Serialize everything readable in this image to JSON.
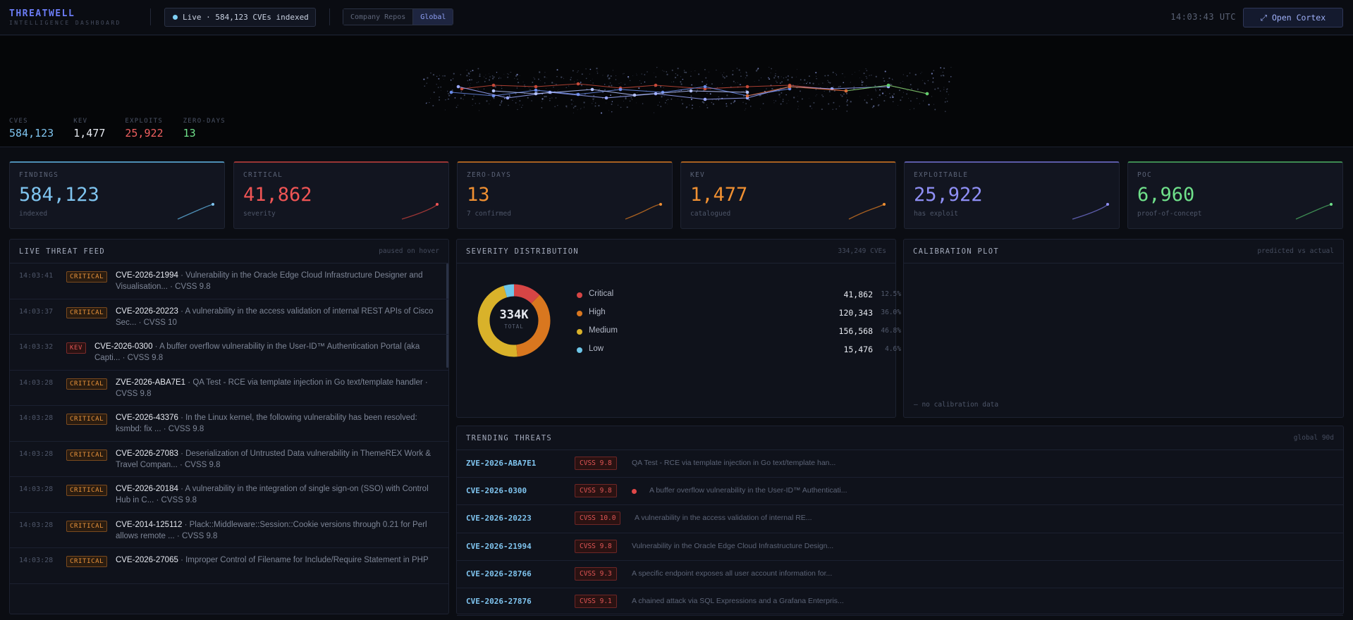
{
  "header": {
    "brand_name": "THREATWELL",
    "brand_sub": "INTELLIGENCE DASHBOARD",
    "live_text": "Live · 584,123 CVEs indexed",
    "scope_options": [
      "Company Repos",
      "Global"
    ],
    "scope_selected": "Global",
    "clock": "14:03:43 UTC",
    "cortex_label": "⤢ Open Cortex"
  },
  "hero_stats": [
    {
      "label": "CVES",
      "value": "584,123",
      "color": "#7fc4ef"
    },
    {
      "label": "KEV",
      "value": "1,477",
      "color": "#e6e9f0"
    },
    {
      "label": "EXPLOITS",
      "value": "25,922",
      "color": "#f06060"
    },
    {
      "label": "ZERO-DAYS",
      "value": "13",
      "color": "#6fe08a"
    }
  ],
  "cards": [
    {
      "label": "FINDINGS",
      "value": "584,123",
      "sub": "indexed",
      "color": "#7fc4ef",
      "border": "#4e8fb6"
    },
    {
      "label": "CRITICAL",
      "value": "41,862",
      "sub": "severity",
      "color": "#f05555",
      "border": "#9a3535"
    },
    {
      "label": "ZERO-DAYS",
      "value": "13",
      "sub": "7 confirmed",
      "color": "#f09032",
      "border": "#a86020"
    },
    {
      "label": "KEV",
      "value": "1,477",
      "sub": "catalogued",
      "color": "#f09032",
      "border": "#a86020"
    },
    {
      "label": "EXPLOITABLE",
      "value": "25,922",
      "sub": "has exploit",
      "color": "#8f8ff5",
      "border": "#5b5ba8"
    },
    {
      "label": "POC",
      "value": "6,960",
      "sub": "proof-of-concept",
      "color": "#6fe08a",
      "border": "#3d8a52"
    }
  ],
  "feed": {
    "title": "LIVE THREAT FEED",
    "note": "paused on hover",
    "items": [
      {
        "time": "14:03:41",
        "badge": "CRITICAL",
        "id": "CVE-2026-21994",
        "text": " · Vulnerability in the Oracle Edge Cloud Infrastructure Designer and Visualisation... · CVSS 9.8"
      },
      {
        "time": "14:03:37",
        "badge": "CRITICAL",
        "id": "CVE-2026-20223",
        "text": " · A vulnerability in the access validation of internal REST APIs of Cisco Sec... · CVSS 10"
      },
      {
        "time": "14:03:32",
        "badge": "KEV",
        "id": "CVE-2026-0300",
        "text": " · A buffer overflow vulnerability in the User-ID™ Authentication Portal (aka Capti... · CVSS 9.8"
      },
      {
        "time": "14:03:28",
        "badge": "CRITICAL",
        "id": "ZVE-2026-ABA7E1",
        "text": " · QA Test - RCE via template injection in Go text/template handler · CVSS 9.8"
      },
      {
        "time": "14:03:28",
        "badge": "CRITICAL",
        "id": "CVE-2026-43376",
        "text": " · In the Linux kernel, the following vulnerability has been resolved: ksmbd: fix ... · CVSS 9.8"
      },
      {
        "time": "14:03:28",
        "badge": "CRITICAL",
        "id": "CVE-2026-27083",
        "text": " · Deserialization of Untrusted Data vulnerability in ThemeREX Work & Travel Compan... · CVSS 9.8"
      },
      {
        "time": "14:03:28",
        "badge": "CRITICAL",
        "id": "CVE-2026-20184",
        "text": " · A vulnerability in the integration of single sign-on (SSO) with Control Hub in C... · CVSS 9.8"
      },
      {
        "time": "14:03:28",
        "badge": "CRITICAL",
        "id": "CVE-2014-125112",
        "text": " · Plack::Middleware::Session::Cookie versions through 0.21 for Perl allows remote ... · CVSS 9.8"
      },
      {
        "time": "14:03:28",
        "badge": "CRITICAL",
        "id": "CVE-2026-27065",
        "text": " · Improper Control of Filename for Include/Require Statement in PHP"
      }
    ]
  },
  "severity": {
    "title": "SEVERITY DISTRIBUTION",
    "note": "334,249 CVEs",
    "total_label": "334K",
    "total_sub": "TOTAL",
    "rows": [
      {
        "name": "Critical",
        "count": "41,862",
        "pct": "12.5%",
        "value": 41862,
        "color": "#d64545"
      },
      {
        "name": "High",
        "count": "120,343",
        "pct": "36.0%",
        "value": 120343,
        "color": "#d9771f"
      },
      {
        "name": "Medium",
        "count": "156,568",
        "pct": "46.8%",
        "value": 156568,
        "color": "#d9b22a"
      },
      {
        "name": "Low",
        "count": "15,476",
        "pct": "4.6%",
        "value": 15476,
        "color": "#6ec6e8"
      }
    ]
  },
  "calibration": {
    "title": "CALIBRATION PLOT",
    "note": "predicted vs actual",
    "empty_text": "— no calibration data"
  },
  "trending": {
    "title": "TRENDING THREATS",
    "note": "global 90d",
    "items": [
      {
        "id": "ZVE-2026-ABA7E1",
        "cvss": "CVSS 9.8",
        "desc": "QA Test - RCE via template injection in Go text/template han...",
        "dot": false
      },
      {
        "id": "CVE-2026-0300",
        "cvss": "CVSS 9.8",
        "desc": "A buffer overflow vulnerability in the User-ID™ Authenticati...",
        "dot": true
      },
      {
        "id": "CVE-2026-20223",
        "cvss": "CVSS 10.0",
        "desc": "A vulnerability in the access validation of internal RE...",
        "dot": false
      },
      {
        "id": "CVE-2026-21994",
        "cvss": "CVSS 9.8",
        "desc": "Vulnerability in the Oracle Edge Cloud Infrastructure Design...",
        "dot": false
      },
      {
        "id": "CVE-2026-28766",
        "cvss": "CVSS 9.3",
        "desc": "A specific endpoint exposes all user account information for...",
        "dot": false
      },
      {
        "id": "CVE-2026-27876",
        "cvss": "CVSS 9.1",
        "desc": "A chained attack via SQL Expressions and a Grafana Enterpris...",
        "dot": false
      }
    ]
  }
}
